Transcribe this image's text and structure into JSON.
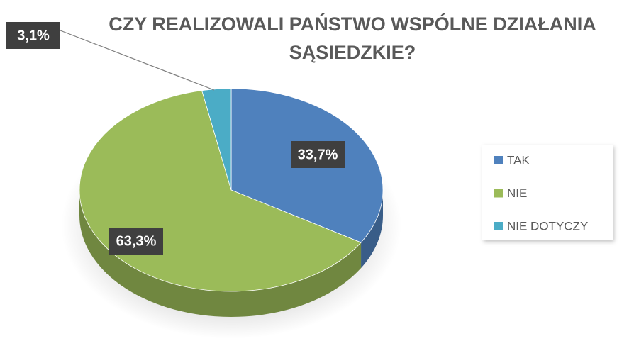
{
  "chart_data": {
    "type": "pie",
    "title": "CZY REALIZOWALI PAŃSTWO WSPÓLNE DZIAŁANIA SĄSIEDZKIE?",
    "categories": [
      "TAK",
      "NIE",
      "NIE DOTYCZY"
    ],
    "values": [
      33.7,
      63.3,
      3.1
    ],
    "value_labels": [
      "33,7%",
      "63,3%",
      "3,1%"
    ],
    "colors": [
      "#4f81bd",
      "#9bbb59",
      "#4bacc6"
    ],
    "legend": "right"
  }
}
